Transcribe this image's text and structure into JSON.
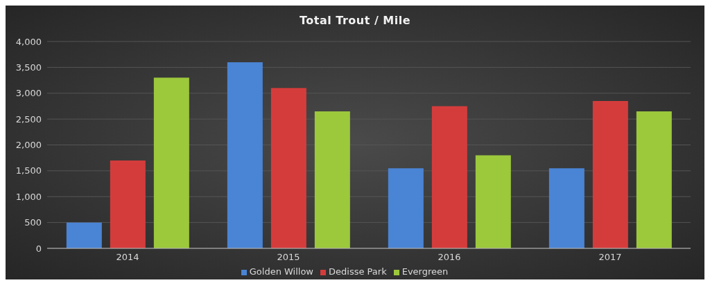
{
  "chart_data": {
    "type": "bar",
    "title": "Total Trout / Mile",
    "categories": [
      "2014",
      "2015",
      "2016",
      "2017"
    ],
    "series": [
      {
        "name": "Golden Willow",
        "color": "#4a84d4",
        "values": [
          500,
          3600,
          1550,
          1550
        ]
      },
      {
        "name": "Dedisse Park",
        "color": "#d43c3c",
        "values": [
          1700,
          3100,
          2750,
          2850
        ]
      },
      {
        "name": "Evergreen",
        "color": "#9cc83c",
        "values": [
          3300,
          2650,
          1800,
          2650
        ]
      }
    ],
    "ylim": [
      0,
      4000
    ],
    "yticks": [
      {
        "value": 0,
        "label": "0"
      },
      {
        "value": 500,
        "label": "500"
      },
      {
        "value": 1000,
        "label": "1,000"
      },
      {
        "value": 1500,
        "label": "1,500"
      },
      {
        "value": 2000,
        "label": "2,000"
      },
      {
        "value": 2500,
        "label": "2,500"
      },
      {
        "value": 3000,
        "label": "3,000"
      },
      {
        "value": 3500,
        "label": "3,500"
      },
      {
        "value": 4000,
        "label": "4,000"
      }
    ],
    "grid": "y",
    "legend": "bottom"
  }
}
